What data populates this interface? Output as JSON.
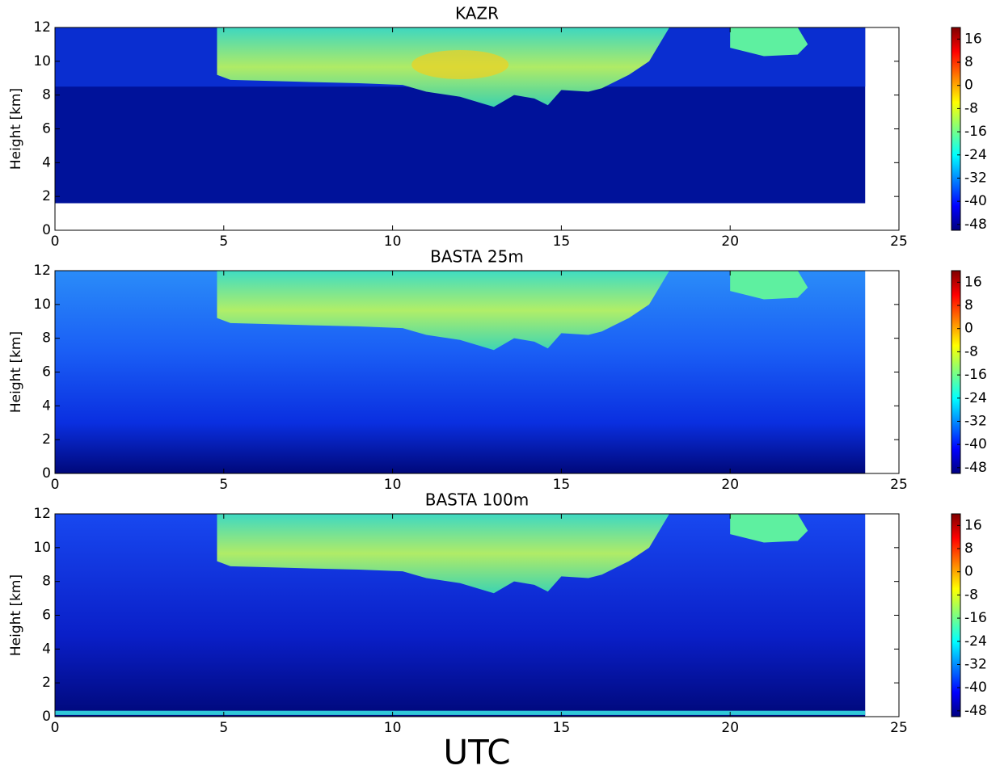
{
  "chart_data": [
    {
      "type": "heatmap",
      "title": "KAZR",
      "ylabel": "Height [km]",
      "xlim": [
        0,
        25
      ],
      "xticks": [
        0,
        5,
        10,
        15,
        20,
        25
      ],
      "ylim": [
        0,
        12
      ],
      "yticks": [
        0,
        2,
        4,
        6,
        8,
        10,
        12
      ],
      "clim": [
        -50,
        20
      ],
      "cticks": [
        -48,
        -40,
        -32,
        -24,
        -16,
        -8,
        0,
        8,
        16
      ]
    },
    {
      "type": "heatmap",
      "title": "BASTA 25m",
      "ylabel": "Height [km]",
      "xlim": [
        0,
        25
      ],
      "xticks": [
        0,
        5,
        10,
        15,
        20,
        25
      ],
      "ylim": [
        0,
        12
      ],
      "yticks": [
        0,
        2,
        4,
        6,
        8,
        10,
        12
      ],
      "clim": [
        -50,
        20
      ],
      "cticks": [
        -48,
        -40,
        -32,
        -24,
        -16,
        -8,
        0,
        8,
        16
      ]
    },
    {
      "type": "heatmap",
      "title": "BASTA 100m",
      "ylabel": "Height [km]",
      "xlabel": "UTC",
      "xlim": [
        0,
        25
      ],
      "xticks": [
        0,
        5,
        10,
        15,
        20,
        25
      ],
      "ylim": [
        0,
        12
      ],
      "yticks": [
        0,
        2,
        4,
        6,
        8,
        10,
        12
      ],
      "clim": [
        -50,
        20
      ],
      "cticks": [
        -48,
        -40,
        -32,
        -24,
        -16,
        -8,
        0,
        8,
        16
      ]
    }
  ]
}
